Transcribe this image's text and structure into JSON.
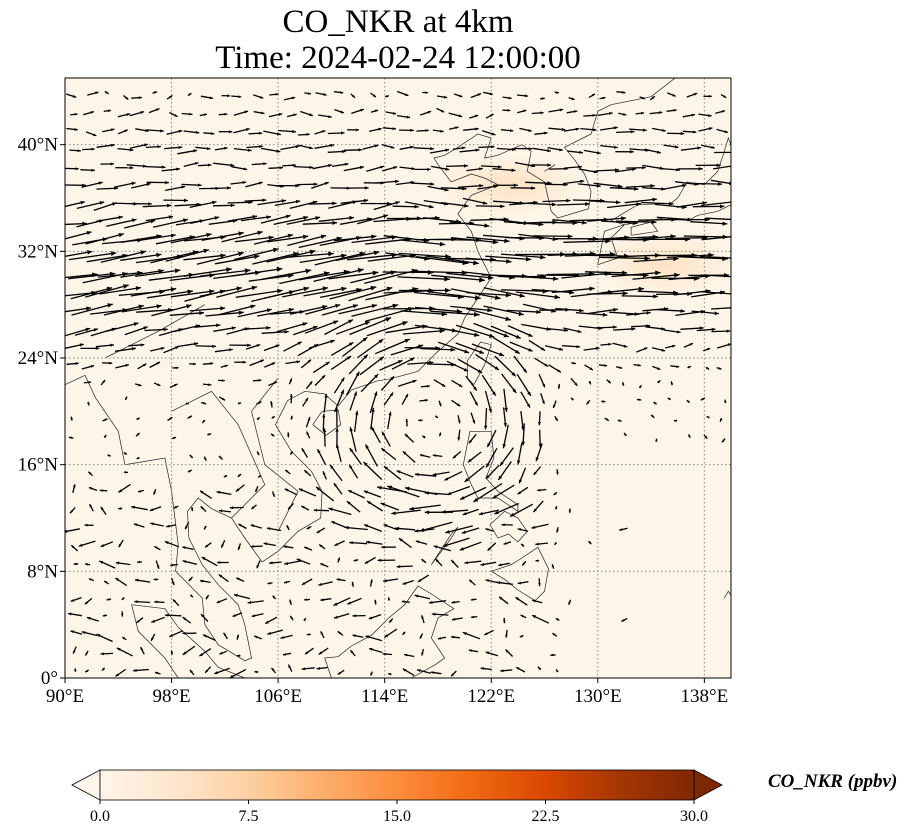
{
  "title": {
    "line1": "CO_NKR at 4km",
    "line2": "Time: 2024-02-24 12:00:00"
  },
  "map": {
    "extent": {
      "lon": [
        90,
        140
      ],
      "lat": [
        0,
        45
      ]
    },
    "background_color": "#fef5e9",
    "grid": "dotted",
    "lon_ticks": [
      90,
      98,
      106,
      114,
      122,
      130,
      138
    ],
    "lat_ticks": [
      0,
      8,
      16,
      24,
      32,
      40
    ],
    "lon_labels": [
      "90°E",
      "98°E",
      "106°E",
      "114°E",
      "122°E",
      "130°E",
      "138°E"
    ],
    "lat_labels": [
      "0°",
      "8°N",
      "16°N",
      "24°N",
      "32°N",
      "40°N"
    ],
    "field_highlights": [
      {
        "lon": 123.5,
        "lat": 37,
        "value": 4.5
      },
      {
        "lon": 135,
        "lat": 31,
        "value": 4
      }
    ],
    "wind_field": "westerly jet 25–35°N, anticyclone centred near 118°E 19°N, weak winds south of 16°N"
  },
  "colorbar": {
    "label": "CO_NKR (ppbv)",
    "min": 0,
    "max": 30,
    "ticks": [
      0,
      7.5,
      15,
      22.5,
      30
    ],
    "tick_labels": [
      "0.0",
      "7.5",
      "15.0",
      "22.5",
      "30.0"
    ],
    "colormap": [
      "#fff5eb",
      "#fee6ce",
      "#fdd0a2",
      "#fdae6b",
      "#fd8d3c",
      "#f16913",
      "#d94801",
      "#a63603",
      "#7f2704"
    ],
    "extend": "both"
  }
}
